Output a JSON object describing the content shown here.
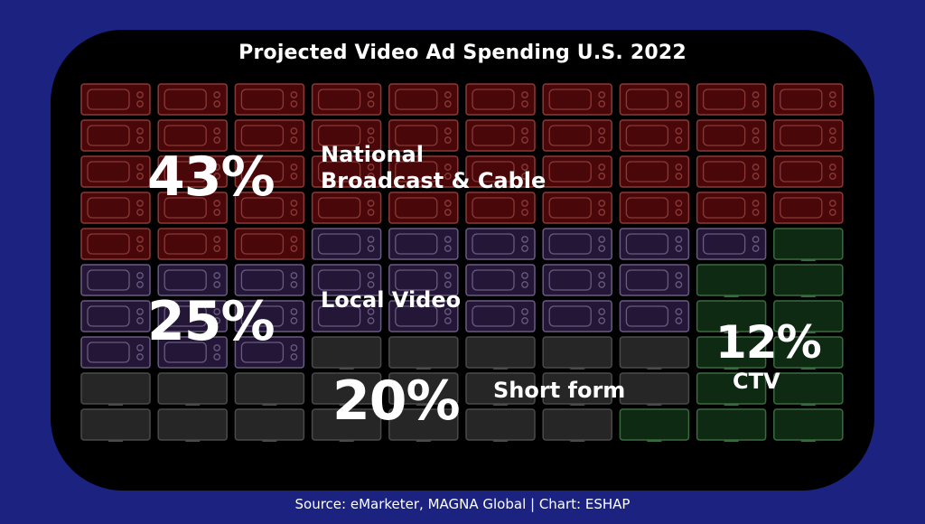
{
  "chart_data": {
    "type": "waffle",
    "title": "Projected Video Ad Spending U.S. 2022",
    "grid": {
      "rows": 10,
      "columns": 10,
      "total_cells": 100
    },
    "series": [
      {
        "name": "National Broadcast & Cable",
        "value": 43,
        "value_label": "43%",
        "name_lines": [
          "National",
          "Broadcast & Cable"
        ],
        "color": "#4a0709",
        "stroke": "#8a3a36",
        "icon": "tv-icon"
      },
      {
        "name": "Local Video",
        "value": 25,
        "value_label": "25%",
        "color": "#241637",
        "stroke": "#6a5a82",
        "icon": "tv-icon"
      },
      {
        "name": "Short form",
        "value": 20,
        "value_label": "20%",
        "color": "#262626",
        "stroke": "#4a4a4a",
        "icon": "screen-icon"
      },
      {
        "name": "CTV",
        "value": 12,
        "value_label": "12%",
        "color": "#0f2a12",
        "stroke": "#3c6a40",
        "icon": "screen-icon"
      }
    ],
    "source": "Source: eMarketer, MAGNA Global | Chart: ESHAP"
  }
}
